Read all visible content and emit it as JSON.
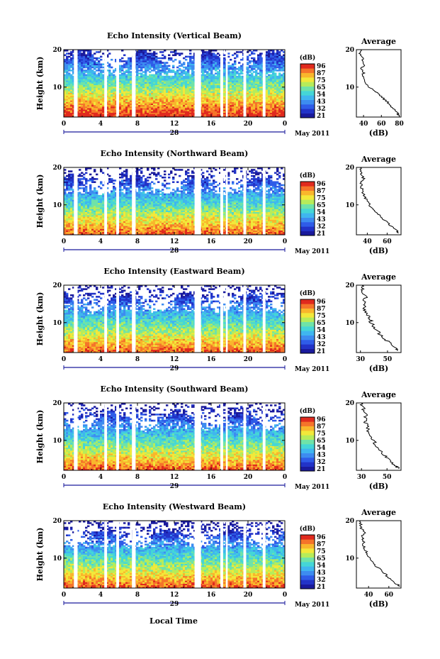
{
  "figure": {
    "xlabel": "Local Time",
    "date_label": "May 2011"
  },
  "colorbar": {
    "unit": "(dB)",
    "colors": [
      "#1a1a9c",
      "#2233c8",
      "#2f5ce8",
      "#3d8cf0",
      "#3fb6ef",
      "#45d6d6",
      "#6fe3a8",
      "#b6ec5a",
      "#f2e83a",
      "#f9b62c",
      "#f5742a",
      "#e02a1e"
    ]
  },
  "chart_data": [
    {
      "type": "heatmap",
      "title": "Echo Intensity (Vertical Beam)",
      "ylabel": "Height (km)",
      "x_ticks": [
        "0",
        "4",
        "8",
        "12",
        "16",
        "20",
        "0"
      ],
      "y_ticks": [
        "10",
        "20"
      ],
      "day_label": "28",
      "xlim": [
        0,
        24
      ],
      "ylim": [
        2,
        20
      ],
      "colorbar_ticks": [
        "96",
        "87",
        "75",
        "65",
        "54",
        "43",
        "32",
        "21"
      ],
      "data_gaps_hours": [
        [
          1.1,
          1.5
        ],
        [
          4.4,
          4.7
        ],
        [
          5.7,
          6.0
        ],
        [
          7.4,
          7.8
        ],
        [
          14.2,
          14.9
        ],
        [
          17.0,
          17.3
        ],
        [
          17.6,
          17.8
        ],
        [
          19.5,
          19.8
        ],
        [
          21.6,
          21.9
        ]
      ],
      "profile": {
        "title": "Average",
        "xlabel": "(dB)",
        "x_ticks": [
          "40",
          "60",
          "80"
        ],
        "y_ticks": [
          "10",
          "20"
        ],
        "height_km": [
          2.5,
          3,
          4,
          5,
          6,
          7,
          8,
          9,
          10,
          11,
          12,
          13,
          14,
          15,
          16,
          17,
          18,
          19,
          20
        ],
        "db": [
          80,
          78,
          75,
          70,
          67,
          62,
          58,
          52,
          46,
          42,
          40,
          39,
          40,
          38,
          41,
          40,
          38,
          36,
          37
        ]
      }
    },
    {
      "type": "heatmap",
      "title": "Echo Intensity (Northward Beam)",
      "ylabel": "Height (km)",
      "x_ticks": [
        "0",
        "4",
        "8",
        "12",
        "16",
        "20",
        "0"
      ],
      "y_ticks": [
        "10",
        "20"
      ],
      "day_label": "28",
      "xlim": [
        0,
        24
      ],
      "ylim": [
        2,
        20
      ],
      "colorbar_ticks": [
        "96",
        "87",
        "75",
        "65",
        "54",
        "43",
        "32",
        "21"
      ],
      "data_gaps_hours": [
        [
          1.1,
          1.5
        ],
        [
          4.4,
          4.7
        ],
        [
          5.7,
          6.0
        ],
        [
          7.4,
          7.8
        ],
        [
          14.2,
          14.9
        ],
        [
          17.0,
          17.3
        ],
        [
          17.6,
          17.8
        ],
        [
          19.5,
          19.8
        ],
        [
          21.6,
          21.9
        ]
      ],
      "profile": {
        "title": "Average",
        "xlabel": "(dB)",
        "x_ticks": [
          "40",
          "60"
        ],
        "y_ticks": [
          "10",
          "20"
        ],
        "height_km": [
          2.5,
          3,
          4,
          5,
          6,
          7,
          8,
          9,
          10,
          11,
          12,
          13,
          14,
          15,
          16,
          17,
          18,
          19,
          20
        ],
        "db": [
          72,
          70,
          66,
          61,
          57,
          53,
          48,
          45,
          42,
          40,
          38,
          36,
          35,
          34,
          34,
          36,
          34,
          33,
          33
        ]
      }
    },
    {
      "type": "heatmap",
      "title": "Echo Intensity (Eastward Beam)",
      "ylabel": "Height (km)",
      "x_ticks": [
        "0",
        "4",
        "8",
        "12",
        "16",
        "20",
        "0"
      ],
      "y_ticks": [
        "10",
        "20"
      ],
      "day_label": "29",
      "xlim": [
        0,
        24
      ],
      "ylim": [
        2,
        20
      ],
      "colorbar_ticks": [
        "96",
        "87",
        "75",
        "65",
        "54",
        "43",
        "32",
        "21"
      ],
      "data_gaps_hours": [
        [
          1.1,
          1.5
        ],
        [
          4.4,
          4.7
        ],
        [
          5.7,
          6.0
        ],
        [
          7.4,
          7.8
        ],
        [
          14.2,
          14.9
        ],
        [
          17.0,
          17.3
        ],
        [
          17.6,
          17.8
        ],
        [
          19.5,
          19.8
        ],
        [
          21.6,
          21.9
        ]
      ],
      "profile": {
        "title": "Average",
        "xlabel": "(dB)",
        "x_ticks": [
          "30",
          "50"
        ],
        "y_ticks": [
          "10",
          "20"
        ],
        "height_km": [
          2.5,
          3,
          4,
          5,
          6,
          7,
          8,
          9,
          10,
          11,
          12,
          13,
          14,
          15,
          16,
          17,
          18,
          19,
          20
        ],
        "db": [
          58,
          56,
          53,
          50,
          47,
          44,
          42,
          40,
          38,
          37,
          35,
          34,
          33,
          32,
          33,
          35,
          32,
          31,
          31
        ]
      }
    },
    {
      "type": "heatmap",
      "title": "Echo Intensity (Southward Beam)",
      "ylabel": "Height (km)",
      "x_ticks": [
        "0",
        "4",
        "8",
        "12",
        "16",
        "20",
        "0"
      ],
      "y_ticks": [
        "10",
        "20"
      ],
      "day_label": "29",
      "xlim": [
        0,
        24
      ],
      "ylim": [
        2,
        20
      ],
      "colorbar_ticks": [
        "96",
        "87",
        "75",
        "65",
        "54",
        "43",
        "32",
        "21"
      ],
      "data_gaps_hours": [
        [
          1.1,
          1.5
        ],
        [
          4.4,
          4.7
        ],
        [
          5.7,
          6.0
        ],
        [
          7.4,
          7.8
        ],
        [
          14.2,
          14.9
        ],
        [
          17.0,
          17.3
        ],
        [
          17.6,
          17.8
        ],
        [
          19.5,
          19.8
        ],
        [
          21.6,
          21.9
        ]
      ],
      "profile": {
        "title": "Average",
        "xlabel": "(dB)",
        "x_ticks": [
          "30",
          "50"
        ],
        "y_ticks": [
          "10",
          "20"
        ],
        "height_km": [
          2.5,
          3,
          4,
          5,
          6,
          7,
          8,
          9,
          10,
          11,
          12,
          13,
          14,
          15,
          16,
          17,
          18,
          19,
          20
        ],
        "db": [
          59,
          57,
          54,
          51,
          48,
          45,
          43,
          41,
          39,
          37,
          36,
          35,
          34,
          33,
          33,
          35,
          32,
          31,
          30
        ]
      }
    },
    {
      "type": "heatmap",
      "title": "Echo Intensity (Westward Beam)",
      "ylabel": "Height (km)",
      "x_ticks": [
        "0",
        "4",
        "8",
        "12",
        "16",
        "20",
        "0"
      ],
      "y_ticks": [
        "10",
        "20"
      ],
      "day_label": "29",
      "xlim": [
        0,
        24
      ],
      "ylim": [
        2,
        20
      ],
      "colorbar_ticks": [
        "96",
        "87",
        "75",
        "65",
        "54",
        "43",
        "32",
        "21"
      ],
      "data_gaps_hours": [
        [
          1.1,
          1.5
        ],
        [
          4.4,
          4.7
        ],
        [
          5.7,
          6.0
        ],
        [
          7.4,
          7.8
        ],
        [
          14.2,
          14.9
        ],
        [
          17.0,
          17.3
        ],
        [
          17.6,
          17.8
        ],
        [
          19.5,
          19.8
        ],
        [
          21.6,
          21.9
        ]
      ],
      "profile": {
        "title": "Average",
        "xlabel": "(dB)",
        "x_ticks": [
          "40",
          "60"
        ],
        "y_ticks": [
          "10",
          "20"
        ],
        "height_km": [
          2.5,
          3,
          4,
          5,
          6,
          7,
          8,
          9,
          10,
          11,
          12,
          13,
          14,
          15,
          16,
          17,
          18,
          19,
          20
        ],
        "db": [
          70,
          68,
          64,
          59,
          55,
          51,
          47,
          44,
          41,
          39,
          37,
          36,
          35,
          34,
          34,
          36,
          33,
          32,
          32
        ]
      }
    }
  ]
}
